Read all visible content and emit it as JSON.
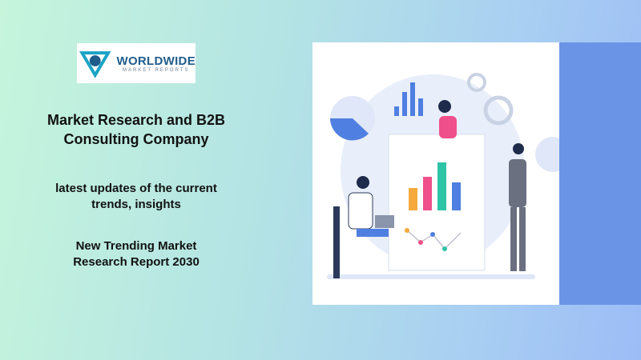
{
  "logo": {
    "main": "WORLDWIDE",
    "sub": "MARKET REPORTS"
  },
  "headline": "Market Research and B2B Consulting Company",
  "tagline": "latest updates of the current trends, insights",
  "report": "New Trending Market Research Report 2030",
  "colors": {
    "accent_block": "#6a95e6",
    "logo_blue": "#1f5c8c",
    "logo_teal": "#1ba3c6"
  }
}
